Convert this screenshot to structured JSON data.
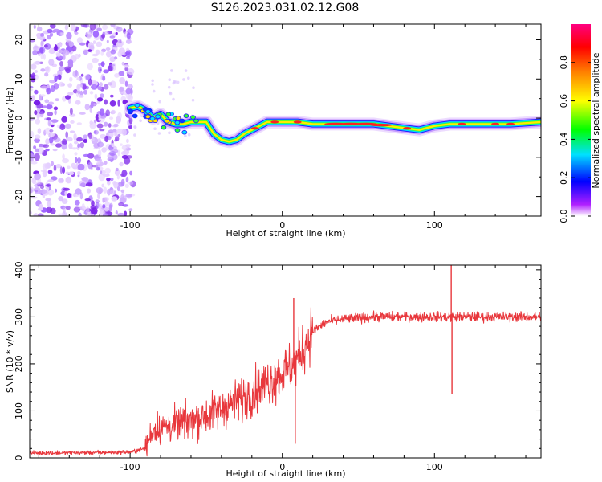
{
  "title": "S126.2023.031.02.12.G08",
  "chart_data": [
    {
      "type": "heatmap",
      "xlabel": "Height of straight line (km)",
      "ylabel": "Frequency (Hz)",
      "xlim": [
        -166,
        170
      ],
      "ylim": [
        -25,
        24
      ],
      "xticks": [
        -100,
        0,
        100
      ],
      "yticks": [
        20,
        10,
        0,
        -10,
        -20
      ],
      "colorbar": {
        "label": "Normalized spectral amplitude",
        "range": [
          0,
          1
        ],
        "ticks": [
          0.0,
          0.2,
          0.4,
          0.6,
          0.8
        ],
        "colors": [
          "#ffffff",
          "#b020ff",
          "#0000ff",
          "#00e0ff",
          "#00ff00",
          "#ffff00",
          "#ff8000",
          "#ff0000",
          "#ff0080"
        ]
      },
      "ridge": {
        "x": [
          -100,
          -95,
          -90,
          -85,
          -80,
          -75,
          -70,
          -65,
          -60,
          -55,
          -50,
          -45,
          -40,
          -35,
          -30,
          -25,
          -20,
          -15,
          -10,
          -5,
          0,
          10,
          20,
          40,
          60,
          80,
          90,
          100,
          110,
          130,
          150,
          170
        ],
        "y": [
          2.5,
          3,
          2,
          0,
          1,
          -1,
          -1.5,
          -1.5,
          -1,
          -1,
          -1,
          -4,
          -5.5,
          -6,
          -5.5,
          -4,
          -3,
          -2,
          -1,
          -1,
          -1,
          -1,
          -1.5,
          -1.5,
          -1.5,
          -2.5,
          -3,
          -2,
          -1.5,
          -1.5,
          -1.5,
          -1
        ]
      }
    },
    {
      "type": "line",
      "xlabel": "Height of straight line (km)",
      "ylabel": "SNR (10 * v/v)",
      "xlim": [
        -166,
        170
      ],
      "ylim": [
        0,
        410
      ],
      "xticks": [
        -100,
        0,
        100
      ],
      "yticks": [
        0,
        100,
        200,
        300,
        400
      ],
      "color": "#e8373c",
      "trend": {
        "x": [
          -166,
          -100,
          -90,
          -85,
          -70,
          -50,
          -30,
          -20,
          -10,
          0,
          8,
          12,
          20,
          30,
          40,
          60,
          80,
          100,
          110,
          130,
          170
        ],
        "y": [
          10,
          12,
          20,
          60,
          70,
          90,
          120,
          140,
          160,
          180,
          200,
          220,
          270,
          290,
          295,
          300,
          300,
          300,
          300,
          300,
          300
        ]
      },
      "spikes": [
        {
          "x": 7.5,
          "y": 340
        },
        {
          "x": 8.5,
          "y": 30
        },
        {
          "x": 111,
          "y": 410
        },
        {
          "x": 111.5,
          "y": 135
        }
      ]
    }
  ]
}
